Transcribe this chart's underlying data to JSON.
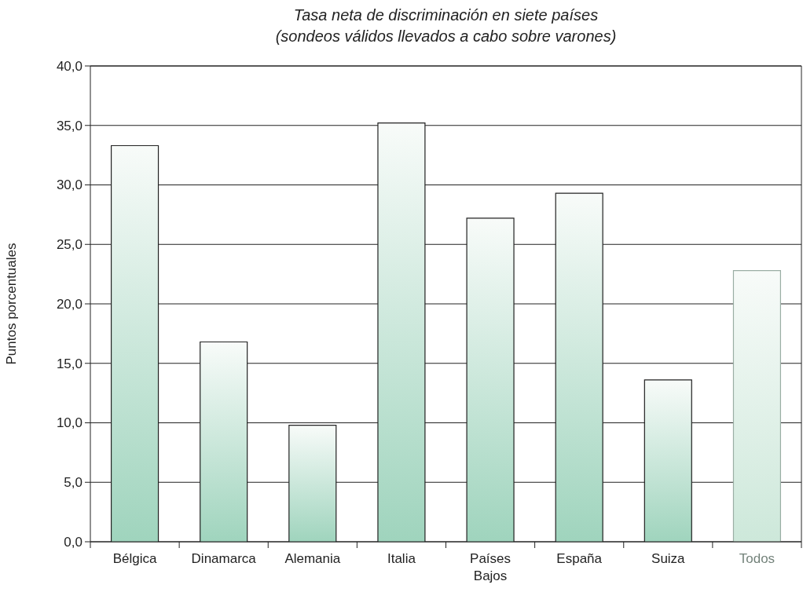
{
  "chart_data": {
    "type": "bar",
    "title": "Tasa neta de discriminación en siete países\n(sondeos válidos llevados a cabo sobre varones)",
    "ylabel": "Puntos porcentuales",
    "categories": [
      "Bélgica",
      "Dinamarca",
      "Alemania",
      "Italia",
      "Países\nBajos",
      "España",
      "Suiza",
      "Todos"
    ],
    "values": [
      33.3,
      16.8,
      9.8,
      35.2,
      27.2,
      29.3,
      13.6,
      22.8
    ],
    "colors": [
      "#9fd4bd",
      "#9fd4bd",
      "#9fd4bd",
      "#9fd4bd",
      "#9fd4bd",
      "#9fd4bd",
      "#9fd4bd",
      "#cde8da"
    ],
    "ylim": [
      0,
      40
    ],
    "yticks": [
      {
        "value": 0,
        "label": "0,0"
      },
      {
        "value": 5,
        "label": "5,0"
      },
      {
        "value": 10,
        "label": "10,0"
      },
      {
        "value": 15,
        "label": "15,0"
      },
      {
        "value": 20,
        "label": "20,0"
      },
      {
        "value": 25,
        "label": "25,0"
      },
      {
        "value": 30,
        "label": "30,0"
      },
      {
        "value": 35,
        "label": "35,0"
      },
      {
        "value": 40,
        "label": "40,0"
      }
    ],
    "grid": "y"
  }
}
